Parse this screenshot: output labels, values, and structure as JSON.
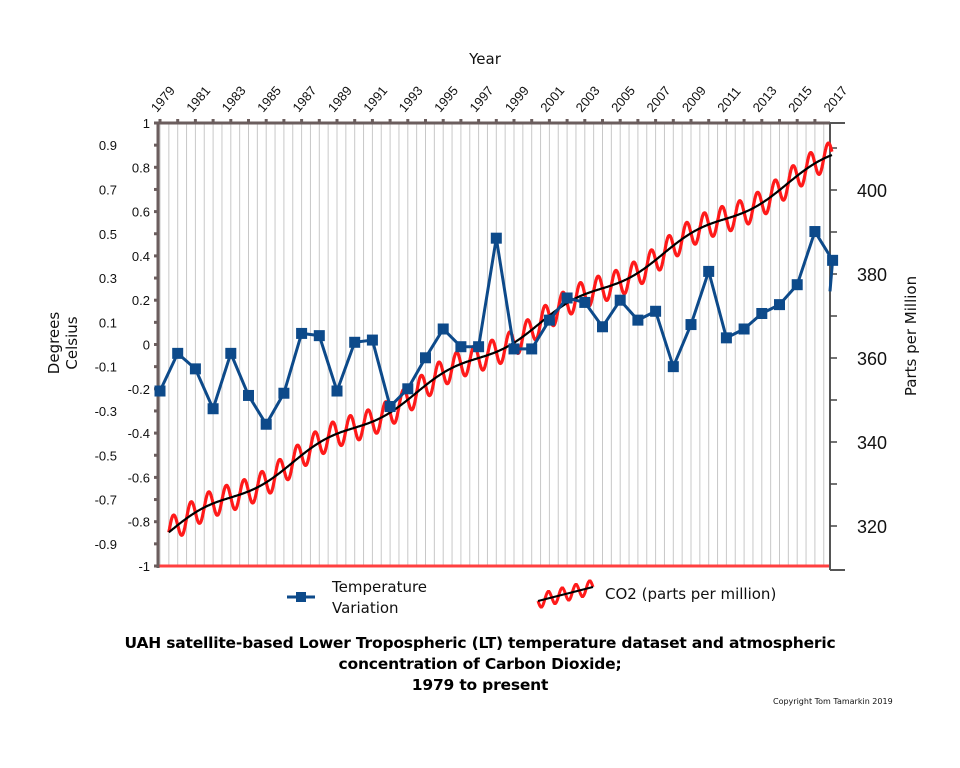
{
  "chart_data": {
    "type": "line",
    "title": "UAH satellite-based Lower Tropospheric (LT) temperature dataset and atmospheric concentration of Carbon Dioxide; 1979 to present",
    "title_lines": [
      "UAH satellite-based Lower Tropospheric (LT) temperature dataset and atmospheric",
      "concentration of Carbon Dioxide;",
      "1979 to present"
    ],
    "copyright": "Copyright Tom Tamarkin 2019",
    "xlabel": "Year",
    "ylabel_left": [
      "Degrees",
      "Celsius"
    ],
    "ylabel_right": "Parts per Million",
    "x_range": [
      1979,
      2017
    ],
    "x_tick_labels": [
      "1979",
      "1981",
      "1983",
      "1985",
      "1987",
      "1989",
      "1991",
      "1993",
      "1995",
      "1997",
      "1999",
      "2001",
      "2003",
      "2005",
      "2007",
      "2009",
      "2011",
      "2013",
      "2015",
      "2017"
    ],
    "y_left_range": [
      -1,
      1
    ],
    "y_left_tick_labels_major": [
      "1",
      "0.8",
      "0.6",
      "0.4",
      "0.2",
      "0",
      "-0.2",
      "-0.4",
      "-0.6",
      "-0.8",
      "-1"
    ],
    "y_left_tick_labels_minor": [
      "0.9",
      "0.7",
      "0.5",
      "0.3",
      "0.1",
      "-0.1",
      "-0.3",
      "-0.5",
      "-0.7",
      "-0.9"
    ],
    "y_right_range": [
      310,
      416
    ],
    "y_right_tick_labels": [
      "400",
      "380",
      "360",
      "340",
      "320"
    ],
    "grid": "vertical",
    "legend_placement": "bottom",
    "series": [
      {
        "name": "Temperature Variation",
        "axis": "left",
        "color": "#0d4a8a",
        "marker": "square",
        "x": [
          1979,
          1980,
          1981,
          1982,
          1983,
          1984,
          1985,
          1986,
          1987,
          1988,
          1989,
          1990,
          1991,
          1992,
          1993,
          1994,
          1995,
          1996,
          1997,
          1998,
          1999,
          2000,
          2001,
          2002,
          2003,
          2004,
          2005,
          2006,
          2007,
          2008,
          2009,
          2010,
          2011,
          2012,
          2013,
          2014,
          2015,
          2016,
          2017
        ],
        "values": [
          -0.21,
          -0.04,
          -0.11,
          -0.29,
          -0.04,
          -0.23,
          -0.36,
          -0.22,
          0.05,
          0.04,
          -0.21,
          0.01,
          0.02,
          -0.28,
          -0.2,
          -0.06,
          0.07,
          -0.01,
          -0.01,
          0.48,
          -0.02,
          -0.02,
          0.11,
          0.21,
          0.19,
          0.08,
          0.2,
          0.11,
          0.15,
          -0.1,
          0.09,
          0.33,
          0.03,
          0.07,
          0.14,
          0.18,
          0.27,
          0.51,
          0.38
        ],
        "end_value": 0.24
      },
      {
        "name": "CO2 (parts per million)",
        "axis": "right",
        "color": "#ff1a1a",
        "trend_color": "#000000",
        "x_start": 1979.5,
        "x_end": 2017.2,
        "trend_start": 318.5,
        "trend_end": 408,
        "seasonal_amplitude": 3.2
      }
    ],
    "colors": {
      "axis": "#6b5e5e",
      "grid": "#c8c8c8",
      "temperature": "#0d4a8a",
      "co2": "#ff1a1a",
      "co2_trend": "#000000"
    }
  }
}
